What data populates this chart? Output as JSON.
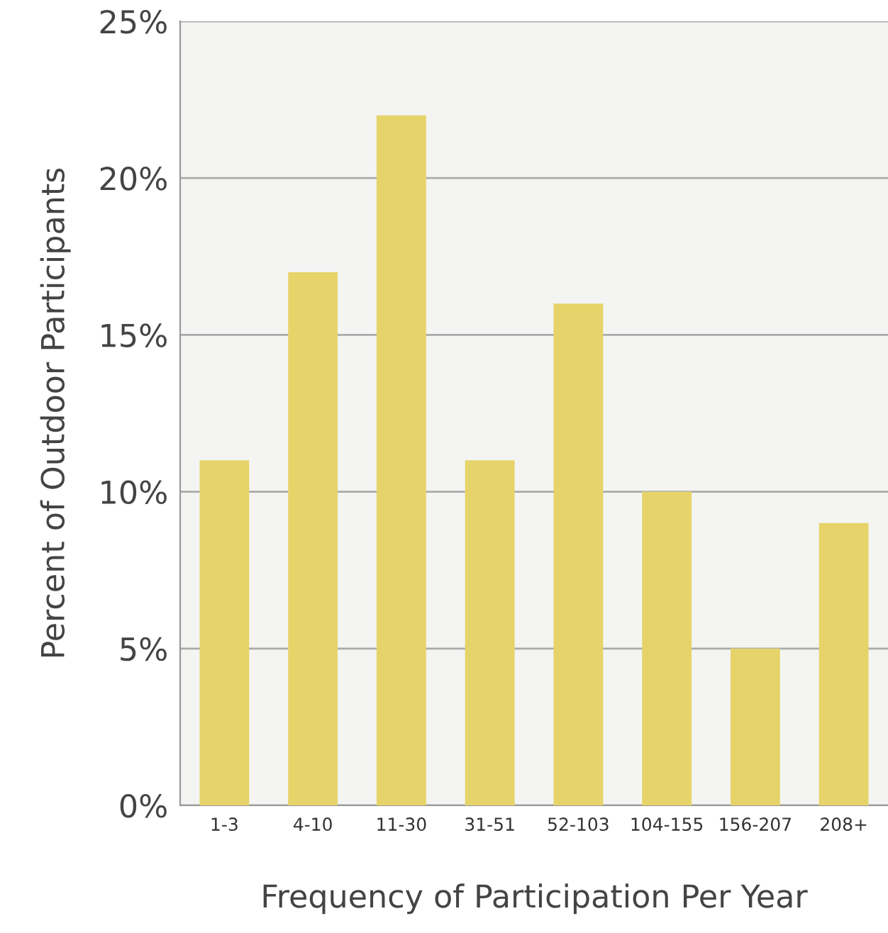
{
  "chart_data": {
    "type": "bar",
    "xlabel": "Frequency of Participation Per Year",
    "ylabel": "Percent of Outdoor Participants",
    "categories": [
      "1-3",
      "4-10",
      "11-30",
      "31-51",
      "52-103",
      "104-155",
      "156-207",
      "208+"
    ],
    "values": [
      11,
      17,
      22,
      11,
      16,
      10,
      5,
      9
    ],
    "color": "#e6d46a",
    "ylim": [
      0,
      25
    ],
    "yticks": [
      {
        "value": 0,
        "label": "0%"
      },
      {
        "value": 5,
        "label": "5%"
      },
      {
        "value": 10,
        "label": "10%"
      },
      {
        "value": 15,
        "label": "15%"
      },
      {
        "value": 20,
        "label": "20%"
      },
      {
        "value": 25,
        "label": "25%"
      }
    ],
    "grid": "y"
  }
}
